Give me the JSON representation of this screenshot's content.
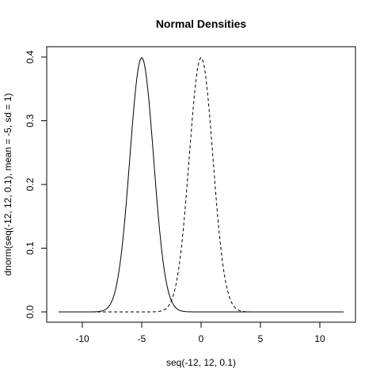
{
  "chart_data": {
    "type": "line",
    "title": "Normal Densities",
    "xlabel": "seq(-12, 12, 0.1)",
    "ylabel": "dnorm(seq(-12, 12, 0.1), mean = -5, sd = 1)",
    "xlim": [
      -12,
      12
    ],
    "ylim": [
      0,
      0.4
    ],
    "xticks": [
      -10,
      -5,
      0,
      5,
      10
    ],
    "xtick_labels": [
      "-10",
      "-5",
      "0",
      "5",
      "10"
    ],
    "yticks": [
      0.0,
      0.1,
      0.2,
      0.3,
      0.4
    ],
    "ytick_labels": [
      "0.0",
      "0.1",
      "0.2",
      "0.3",
      "0.4"
    ],
    "grid": false,
    "x": [
      -12,
      -11,
      -10,
      -9,
      -8,
      -7.5,
      -7,
      -6.5,
      -6,
      -5.5,
      -5,
      -4.5,
      -4,
      -3.5,
      -3,
      -2.5,
      -2,
      -1.5,
      -1,
      -0.5,
      0,
      0.5,
      1,
      1.5,
      2,
      2.5,
      3,
      3.5,
      4,
      5,
      6,
      7,
      8,
      9,
      10,
      11,
      12
    ],
    "series": [
      {
        "line_style": "solid",
        "values": [
          0,
          0,
          0,
          0.0001,
          0.0044,
          0.0175,
          0.054,
          0.1295,
          0.242,
          0.3521,
          0.3989,
          0.3521,
          0.242,
          0.1295,
          0.054,
          0.0175,
          0.0044,
          0.0009,
          0.0001,
          0,
          0,
          0,
          0,
          0,
          0,
          0,
          0,
          0,
          0,
          0,
          0,
          0,
          0,
          0,
          0,
          0,
          0
        ]
      },
      {
        "line_style": "dashed",
        "values": [
          0,
          0,
          0,
          0,
          0,
          0,
          0,
          0,
          0,
          0,
          0,
          0,
          0.0001,
          0.0009,
          0.0044,
          0.0175,
          0.054,
          0.1295,
          0.242,
          0.3521,
          0.3989,
          0.3521,
          0.242,
          0.1295,
          0.054,
          0.0175,
          0.0044,
          0.0009,
          0.0001,
          0,
          0,
          0,
          0,
          0,
          0,
          0,
          0
        ]
      }
    ]
  }
}
